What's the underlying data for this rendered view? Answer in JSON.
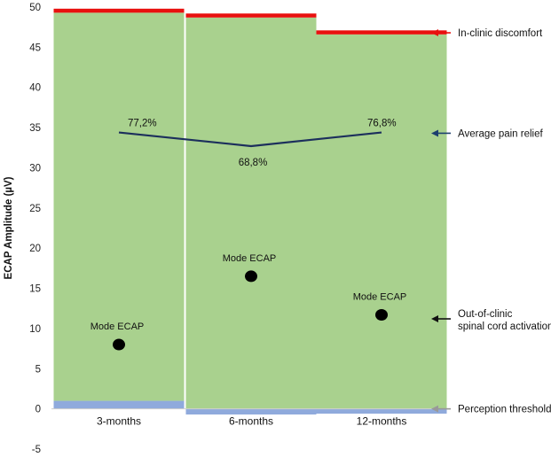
{
  "chart_data": {
    "type": "bar",
    "categories": [
      "3-months",
      "6-months",
      "12-months"
    ],
    "ylabel": "ECAP Amplitude (µV)",
    "ylim": [
      -5,
      50
    ],
    "yticks": [
      -5,
      0,
      5,
      10,
      15,
      20,
      25,
      30,
      35,
      40,
      45,
      50
    ],
    "grid": false,
    "perception_threshold": [
      1.0,
      -0.7,
      -0.6
    ],
    "activation_top": [
      49.3,
      48.7,
      46.6
    ],
    "discomfort_top": [
      49.8,
      49.2,
      47.1
    ],
    "mode_ecap": [
      8.0,
      16.5,
      11.7
    ],
    "mode_ecap_label": "Mode ECAP",
    "pain_relief": {
      "y": [
        34.4,
        32.7,
        34.4
      ],
      "labels": [
        "77,2%",
        "68,8%",
        "76,8%"
      ]
    },
    "annotations": [
      {
        "text": "In-clinic discomfort",
        "y": 46.8,
        "color": "#e8110f"
      },
      {
        "text": "Average pain relief",
        "y": 34.3,
        "color": "#1c3f6e"
      },
      {
        "text": "Out-of-clinic",
        "text2": "spinal cord activation",
        "y": 11.2,
        "color": "#111111"
      },
      {
        "text": "Perception threshold",
        "y": 0.0,
        "color": "#999999"
      }
    ],
    "colors": {
      "activation": "#a9d18e",
      "discomfort": "#e8110f",
      "threshold": "#8faadc",
      "line": "#1c2f5c",
      "mode": "#000000"
    }
  }
}
